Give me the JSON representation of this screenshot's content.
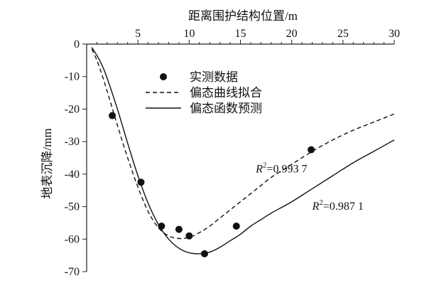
{
  "chart_data": {
    "type": "scatter",
    "xlabel": "距离围护结构位置/m",
    "ylabel": "地表沉降/mm",
    "xlim": [
      0,
      30
    ],
    "ylim": [
      -70,
      0
    ],
    "x_axis_position": "top",
    "x_ticks": [
      "5",
      "10",
      "15",
      "20",
      "25",
      "30"
    ],
    "y_ticks": [
      "0",
      "-10",
      "-20",
      "-30",
      "-40",
      "-50",
      "-60",
      "-70"
    ],
    "legend": [
      "实测数据",
      "偏态曲线拟合",
      "偏态函数预测"
    ],
    "legend_position": "upper-middle",
    "series": [
      {
        "name": "实测数据",
        "style": "markers",
        "x": [
          2.5,
          5.3,
          7.3,
          9.0,
          10.0,
          11.5,
          14.6,
          21.9
        ],
        "y": [
          -22,
          -42.5,
          -56,
          -57,
          -59,
          -64.5,
          -56,
          -32.5
        ]
      },
      {
        "name": "偏态曲线拟合",
        "style": "dashed",
        "x": [
          0.5,
          1.0,
          1.5,
          2.0,
          3.0,
          4.0,
          5.0,
          6.0,
          7.0,
          8.0,
          9.0,
          10.0,
          11.0,
          12.0,
          13.0,
          14.0,
          15.0,
          16.0,
          17.0,
          18.0,
          20.0,
          22.0,
          24.0,
          26.0,
          28.0,
          30.0
        ],
        "y": [
          -1.5,
          -5,
          -9.5,
          -14.5,
          -25,
          -35,
          -44,
          -51.5,
          -56.5,
          -59,
          -59.8,
          -59.5,
          -58,
          -56,
          -53.5,
          -51,
          -48.5,
          -46,
          -43.5,
          -41,
          -37,
          -33,
          -29.5,
          -26.5,
          -24,
          -21.5
        ]
      },
      {
        "name": "偏态函数预测",
        "style": "solid",
        "x": [
          0.5,
          1.0,
          1.5,
          2.0,
          3.0,
          4.0,
          5.0,
          6.0,
          7.0,
          8.0,
          9.0,
          10.0,
          11.0,
          12.0,
          13.0,
          14.0,
          15.0,
          16.0,
          17.0,
          18.0,
          20.0,
          22.0,
          24.0,
          26.0,
          28.0,
          30.0
        ],
        "y": [
          -1,
          -3.5,
          -6.5,
          -10.5,
          -20,
          -30.5,
          -40.5,
          -49,
          -55.5,
          -60,
          -62.8,
          -64.2,
          -64.5,
          -64,
          -62.5,
          -60.5,
          -58.5,
          -56,
          -54,
          -52,
          -48.5,
          -44.5,
          -40.5,
          -36.5,
          -33,
          -29.5
        ]
      }
    ],
    "annotations": [
      {
        "label": "R",
        "sup": "2",
        "value": "=0.993 7",
        "x": 16.5,
        "y": -39.5
      },
      {
        "label": "R",
        "sup": "2",
        "value": "=0.987 1",
        "x": 22,
        "y": -51
      }
    ],
    "grid": false
  }
}
